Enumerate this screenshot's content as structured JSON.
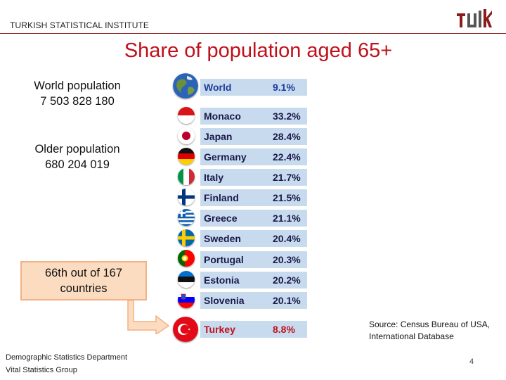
{
  "header": {
    "organization": "TURKISH STATISTICAL INSTITUTE",
    "logo_text": "TUIK"
  },
  "title": "Share of population aged 65+",
  "world_population": {
    "label": "World population",
    "value": "7 503 828 180"
  },
  "older_population": {
    "label": "Older population",
    "value": "680 204 019"
  },
  "callout": "66th out of 167 countries",
  "colors": {
    "title": "#c0101a",
    "row_bg": "#c8dbee",
    "world_text": "#1f3a99",
    "turkey_text": "#c0101a",
    "callout_bg": "#fbdcc0",
    "callout_border": "#f4b183"
  },
  "countries": [
    {
      "name": "World",
      "value": "9.1%",
      "icon": "globe-icon"
    },
    {
      "name": "Monaco",
      "value": "33.2%",
      "icon": "monaco-flag-icon"
    },
    {
      "name": "Japan",
      "value": "28.4%",
      "icon": "japan-flag-icon"
    },
    {
      "name": "Germany",
      "value": "22.4%",
      "icon": "germany-flag-icon"
    },
    {
      "name": "Italy",
      "value": "21.7%",
      "icon": "italy-flag-icon"
    },
    {
      "name": "Finland",
      "value": "21.5%",
      "icon": "finland-flag-icon"
    },
    {
      "name": "Greece",
      "value": "21.1%",
      "icon": "greece-flag-icon"
    },
    {
      "name": "Sweden",
      "value": "20.4%",
      "icon": "sweden-flag-icon"
    },
    {
      "name": "Portugal",
      "value": "20.3%",
      "icon": "portugal-flag-icon"
    },
    {
      "name": "Estonia",
      "value": "20.2%",
      "icon": "estonia-flag-icon"
    },
    {
      "name": "Slovenia",
      "value": "20.1%",
      "icon": "slovenia-flag-icon"
    },
    {
      "name": "Turkey",
      "value": "8.8%",
      "icon": "turkey-flag-icon"
    }
  ],
  "source": {
    "line1": "Source: Census Bureau of USA,",
    "line2": "International Database"
  },
  "footer": {
    "department": "Demographic Statistics Department",
    "group": "Vital Statistics Group"
  },
  "page_number": "4"
}
